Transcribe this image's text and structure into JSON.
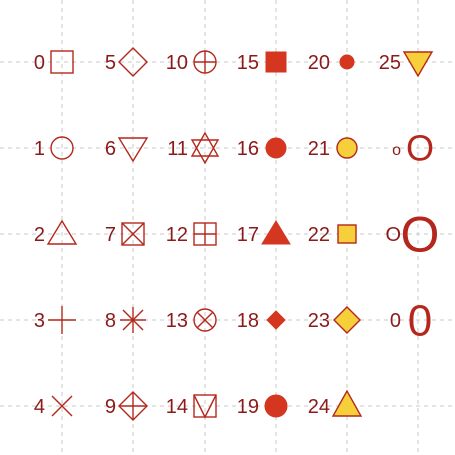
{
  "colors": {
    "stroke": "#b5271c",
    "fill_red": "#d4361f",
    "fill_yellow": "#f5d03b",
    "label": "#8b1a1a",
    "grid": "#c8c8c8",
    "background": "#ffffff"
  },
  "chart_data": {
    "type": "scatter",
    "title": "",
    "xlabel": "",
    "ylabel": "",
    "grid": true,
    "legend": "none",
    "columns": 6,
    "rows": 5,
    "points": [
      {
        "label": "0",
        "shape": "square-open",
        "col": 0,
        "row": 0
      },
      {
        "label": "1",
        "shape": "circle-open",
        "col": 0,
        "row": 1
      },
      {
        "label": "2",
        "shape": "triangle-open",
        "col": 0,
        "row": 2
      },
      {
        "label": "3",
        "shape": "plus",
        "col": 0,
        "row": 3
      },
      {
        "label": "4",
        "shape": "cross",
        "col": 0,
        "row": 4
      },
      {
        "label": "5",
        "shape": "diamond-open",
        "col": 1,
        "row": 0
      },
      {
        "label": "6",
        "shape": "triangle-down-open",
        "col": 1,
        "row": 1
      },
      {
        "label": "7",
        "shape": "square-cross",
        "col": 1,
        "row": 2
      },
      {
        "label": "8",
        "shape": "asterisk",
        "col": 1,
        "row": 3
      },
      {
        "label": "9",
        "shape": "diamond-plus",
        "col": 1,
        "row": 4
      },
      {
        "label": "10",
        "shape": "circle-plus",
        "col": 2,
        "row": 0
      },
      {
        "label": "11",
        "shape": "triangles-up-down",
        "col": 2,
        "row": 1
      },
      {
        "label": "12",
        "shape": "square-plus",
        "col": 2,
        "row": 2
      },
      {
        "label": "13",
        "shape": "circle-cross",
        "col": 2,
        "row": 3
      },
      {
        "label": "14",
        "shape": "square-triangle",
        "col": 2,
        "row": 4
      },
      {
        "label": "15",
        "shape": "square-filled",
        "col": 3,
        "row": 0
      },
      {
        "label": "16",
        "shape": "circle-filled",
        "col": 3,
        "row": 1
      },
      {
        "label": "17",
        "shape": "triangle-filled",
        "col": 3,
        "row": 2
      },
      {
        "label": "18",
        "shape": "diamond-filled",
        "col": 3,
        "row": 3
      },
      {
        "label": "19",
        "shape": "circle-filled-large",
        "col": 3,
        "row": 4
      },
      {
        "label": "20",
        "shape": "circle-filled-small",
        "col": 4,
        "row": 0
      },
      {
        "label": "21",
        "shape": "circle-fill",
        "col": 4,
        "row": 1
      },
      {
        "label": "22",
        "shape": "square-fill",
        "col": 4,
        "row": 2
      },
      {
        "label": "23",
        "shape": "diamond-fill",
        "col": 4,
        "row": 3
      },
      {
        "label": "24",
        "shape": "triangle-fill",
        "col": 4,
        "row": 4
      },
      {
        "label": "25",
        "shape": "triangle-down-fill",
        "col": 5,
        "row": 0
      },
      {
        "label": "o",
        "shape": "char",
        "glyph": "O",
        "glyph_size": "medium",
        "col": 5,
        "row": 1
      },
      {
        "label": "O",
        "shape": "char",
        "glyph": "O",
        "glyph_size": "large",
        "col": 5,
        "row": 2
      },
      {
        "label": "0",
        "shape": "char",
        "glyph": "0",
        "glyph_size": "medium-large",
        "col": 5,
        "row": 3
      }
    ]
  }
}
